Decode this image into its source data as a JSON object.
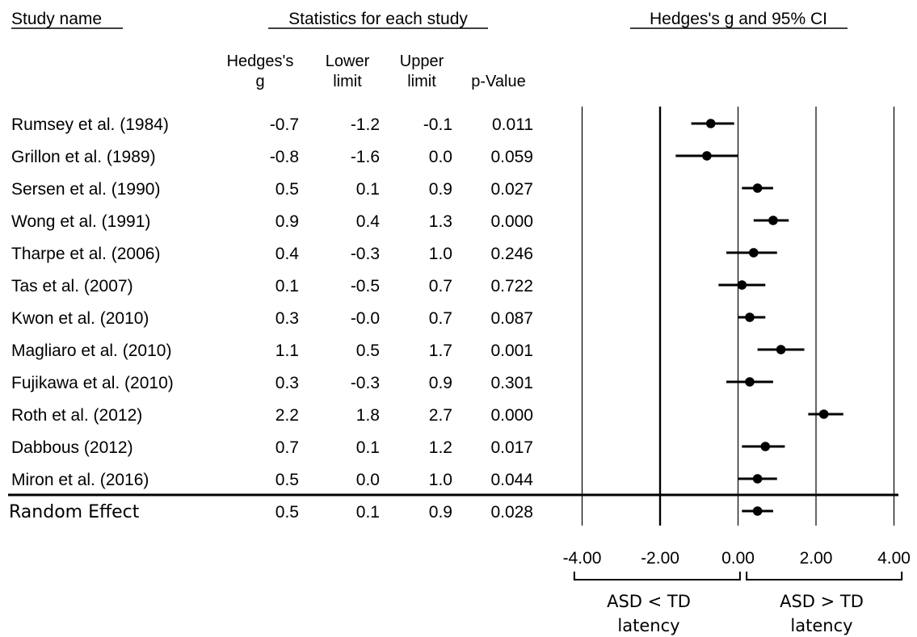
{
  "headers": {
    "study": "Study name",
    "stats": "Statistics for each study",
    "plot": "Hedges's g and 95% CI"
  },
  "columns": {
    "g": [
      "Hedges's",
      "g"
    ],
    "lower": [
      "Lower",
      "limit"
    ],
    "upper": [
      "Upper",
      "limit"
    ],
    "p": [
      "p-Value"
    ]
  },
  "rows_text": [
    {
      "name": "Rumsey et al. (1984)",
      "g": "-0.7",
      "lower": "-1.2",
      "upper": "-0.1",
      "p": "0.011"
    },
    {
      "name": "Grillon et al. (1989)",
      "g": "-0.8",
      "lower": "-1.6",
      "upper": "0.0",
      "p": "0.059"
    },
    {
      "name": "Sersen et al. (1990)",
      "g": "0.5",
      "lower": "0.1",
      "upper": "0.9",
      "p": "0.027"
    },
    {
      "name": "Wong et al. (1991)",
      "g": "0.9",
      "lower": "0.4",
      "upper": "1.3",
      "p": "0.000"
    },
    {
      "name": "Tharpe et al. (2006)",
      "g": "0.4",
      "lower": "-0.3",
      "upper": "1.0",
      "p": "0.246"
    },
    {
      "name": "Tas et al. (2007)",
      "g": "0.1",
      "lower": "-0.5",
      "upper": "0.7",
      "p": "0.722"
    },
    {
      "name": "Kwon et al. (2010)",
      "g": "0.3",
      "lower": "-0.0",
      "upper": "0.7",
      "p": "0.087"
    },
    {
      "name": "Magliaro et al. (2010)",
      "g": "1.1",
      "lower": "0.5",
      "upper": "1.7",
      "p": "0.001"
    },
    {
      "name": "Fujikawa et al. (2010)",
      "g": "0.3",
      "lower": "-0.3",
      "upper": "0.9",
      "p": "0.301"
    },
    {
      "name": "Roth et al. (2012)",
      "g": "2.2",
      "lower": "1.8",
      "upper": "2.7",
      "p": "0.000"
    },
    {
      "name": "Dabbous (2012)",
      "g": "0.7",
      "lower": "0.1",
      "upper": "1.2",
      "p": "0.017"
    },
    {
      "name": "Miron et al. (2016)",
      "g": "0.5",
      "lower": "0.0",
      "upper": "1.0",
      "p": "0.044"
    }
  ],
  "summary_text": {
    "name": "Random Effect",
    "g": "0.5",
    "lower": "0.1",
    "upper": "0.9",
    "p": "0.028"
  },
  "chart_data": {
    "type": "scatter",
    "subtype": "forest-plot",
    "title": "Hedges's g and 95% CI",
    "xlim": [
      -4,
      4
    ],
    "xticks": [
      -4,
      -2,
      0,
      2,
      4
    ],
    "xtick_labels": [
      "-4.00",
      "-2.00",
      "0.00",
      "2.00",
      "4.00"
    ],
    "grid": "vertical lines at each tick",
    "studies": [
      {
        "name": "Rumsey et al. (1984)",
        "g": -0.7,
        "lower": -1.2,
        "upper": -0.1,
        "p": 0.011
      },
      {
        "name": "Grillon et al. (1989)",
        "g": -0.8,
        "lower": -1.6,
        "upper": 0.0,
        "p": 0.059
      },
      {
        "name": "Sersen et al. (1990)",
        "g": 0.5,
        "lower": 0.1,
        "upper": 0.9,
        "p": 0.027
      },
      {
        "name": "Wong et al. (1991)",
        "g": 0.9,
        "lower": 0.4,
        "upper": 1.3,
        "p": 0.0
      },
      {
        "name": "Tharpe et al. (2006)",
        "g": 0.4,
        "lower": -0.3,
        "upper": 1.0,
        "p": 0.246
      },
      {
        "name": "Tas et al. (2007)",
        "g": 0.1,
        "lower": -0.5,
        "upper": 0.7,
        "p": 0.722
      },
      {
        "name": "Kwon et al. (2010)",
        "g": 0.3,
        "lower": -0.0,
        "upper": 0.7,
        "p": 0.087
      },
      {
        "name": "Magliaro et al. (2010)",
        "g": 1.1,
        "lower": 0.5,
        "upper": 1.7,
        "p": 0.001
      },
      {
        "name": "Fujikawa et al. (2010)",
        "g": 0.3,
        "lower": -0.3,
        "upper": 0.9,
        "p": 0.301
      },
      {
        "name": "Roth et al. (2012)",
        "g": 2.2,
        "lower": 1.8,
        "upper": 2.7,
        "p": 0.0
      },
      {
        "name": "Dabbous (2012)",
        "g": 0.7,
        "lower": 0.1,
        "upper": 1.2,
        "p": 0.017
      },
      {
        "name": "Miron et al. (2016)",
        "g": 0.5,
        "lower": 0.0,
        "upper": 1.0,
        "p": 0.044
      }
    ],
    "summary": {
      "name": "Random Effect",
      "g": 0.5,
      "lower": 0.1,
      "upper": 0.9,
      "p": 0.028
    },
    "annotations": {
      "left": [
        "ASD < TD",
        "latency"
      ],
      "right": [
        "ASD > TD",
        "latency"
      ]
    }
  }
}
